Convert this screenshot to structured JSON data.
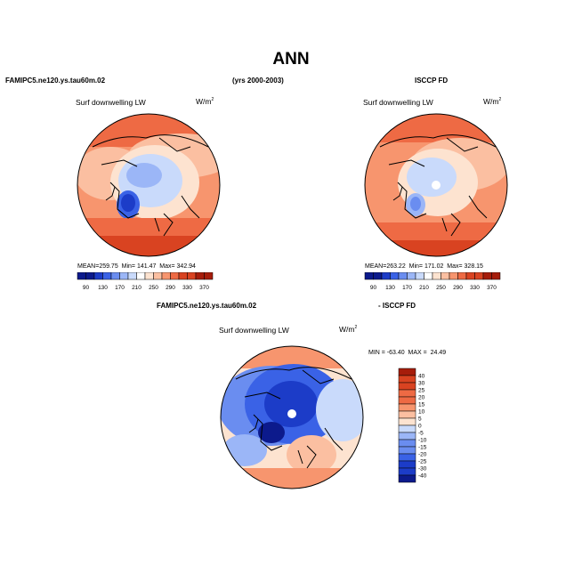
{
  "page_title": "ANN",
  "header": {
    "left": "FAMIPC5.ne120.ys.tau60m.02",
    "center": "(yrs 2000-2003)",
    "right": "ISCCP FD"
  },
  "colors": {
    "blue_scale": [
      "#0c1a8c",
      "#1c3cc8",
      "#3a62e6",
      "#6a8df0",
      "#9bb6f7",
      "#c9dafb"
    ],
    "red_scale": [
      "#fde3d0",
      "#fbbfa1",
      "#f7956e",
      "#ee6a44",
      "#d94321",
      "#a61d0b"
    ],
    "land_outline": "#000000"
  },
  "chart_data": [
    {
      "type": "heatmap",
      "name": "model",
      "panel_label": "Surf downwelling LW",
      "units": "W/m",
      "units_exp": "2",
      "stats": {
        "mean_label": "MEAN=",
        "mean": "259.75",
        "min_label": "Min=",
        "min": "141.47",
        "max_label": "Max=",
        "max": "342.94"
      },
      "colorbar_ticks": [
        "90",
        "130",
        "170",
        "210",
        "250",
        "290",
        "330",
        "370"
      ]
    },
    {
      "type": "heatmap",
      "name": "obs",
      "panel_label": "Surf downwelling LW",
      "units": "W/m",
      "units_exp": "2",
      "stats": {
        "mean_label": "MEAN=",
        "mean": "263.22",
        "min_label": "Min=",
        "min": "171.02",
        "max_label": "Max=",
        "max": "328.15"
      },
      "colorbar_ticks": [
        "90",
        "130",
        "170",
        "210",
        "250",
        "290",
        "330",
        "370"
      ]
    },
    {
      "type": "heatmap",
      "name": "difference",
      "header_left": "FAMIPC5.ne120.ys.tau60m.02",
      "header_right": "- ISCCP FD",
      "panel_label": "Surf downwelling LW",
      "units": "W/m",
      "units_exp": "2",
      "min_max_text": "MIN = -63.40  MAX =  24.49",
      "colorbar_ticks": [
        "40",
        "30",
        "25",
        "20",
        "15",
        "10",
        "5",
        "0",
        "-5",
        "-10",
        "-15",
        "-20",
        "-25",
        "-30",
        "-40"
      ]
    }
  ]
}
